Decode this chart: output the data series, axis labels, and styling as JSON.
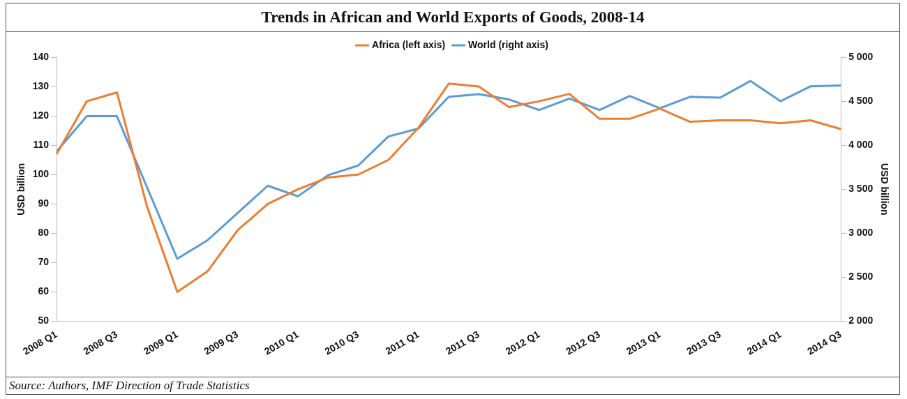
{
  "chart_data": {
    "type": "line",
    "title": "Trends in African and World Exports of Goods, 2008-14",
    "categories": [
      "2008 Q1",
      null,
      "2008 Q3",
      null,
      "2009 Q1",
      null,
      "2009 Q3",
      null,
      "2010 Q1",
      null,
      "2010 Q3",
      null,
      "2011 Q1",
      null,
      "2011 Q3",
      null,
      "2012 Q1",
      null,
      "2012 Q3",
      null,
      "2013 Q1",
      null,
      "2013 Q3",
      null,
      "2014 Q1",
      null,
      "2014 Q3"
    ],
    "series": [
      {
        "name": "Africa (left axis)",
        "color": "#ed7d31",
        "values": [
          107,
          125,
          128,
          89,
          60,
          67,
          81,
          90,
          95,
          99,
          100,
          105,
          116,
          131,
          130,
          123,
          125,
          127.5,
          119,
          119,
          122.5,
          118,
          118.5,
          118.5,
          117.5,
          118.5,
          115.5
        ]
      },
      {
        "name": "World (right axis)",
        "color": "#5b9bd5",
        "axis": "y2",
        "values": [
          3930,
          4330,
          4330,
          3520,
          2710,
          2920,
          3230,
          3540,
          3420,
          3660,
          3770,
          4100,
          4190,
          4550,
          4580,
          4520,
          4400,
          4530,
          4400,
          4560,
          4420,
          4550,
          4540,
          4730,
          4500,
          4670,
          4680
        ]
      }
    ],
    "ylabel": "USD billion",
    "y2label": "USD billion",
    "ylim": [
      50,
      140
    ],
    "yticks": [
      50,
      60,
      70,
      80,
      90,
      100,
      110,
      120,
      130,
      140
    ],
    "y2lim": [
      2000,
      5000
    ],
    "y2ticks": [
      {
        "value": 2000,
        "label": "2 000"
      },
      {
        "value": 2500,
        "label": "2 500"
      },
      {
        "value": 3000,
        "label": "3 000"
      },
      {
        "value": 3500,
        "label": "3 500"
      },
      {
        "value": 4000,
        "label": "4 000"
      },
      {
        "value": 4500,
        "label": "4 500"
      },
      {
        "value": 5000,
        "label": "5 000"
      }
    ],
    "grid": false,
    "legend": "top",
    "marker": "none",
    "line_style": "solid",
    "annotations": [
      "Source: Authors, IMF Direction of Trade Statistics"
    ]
  }
}
